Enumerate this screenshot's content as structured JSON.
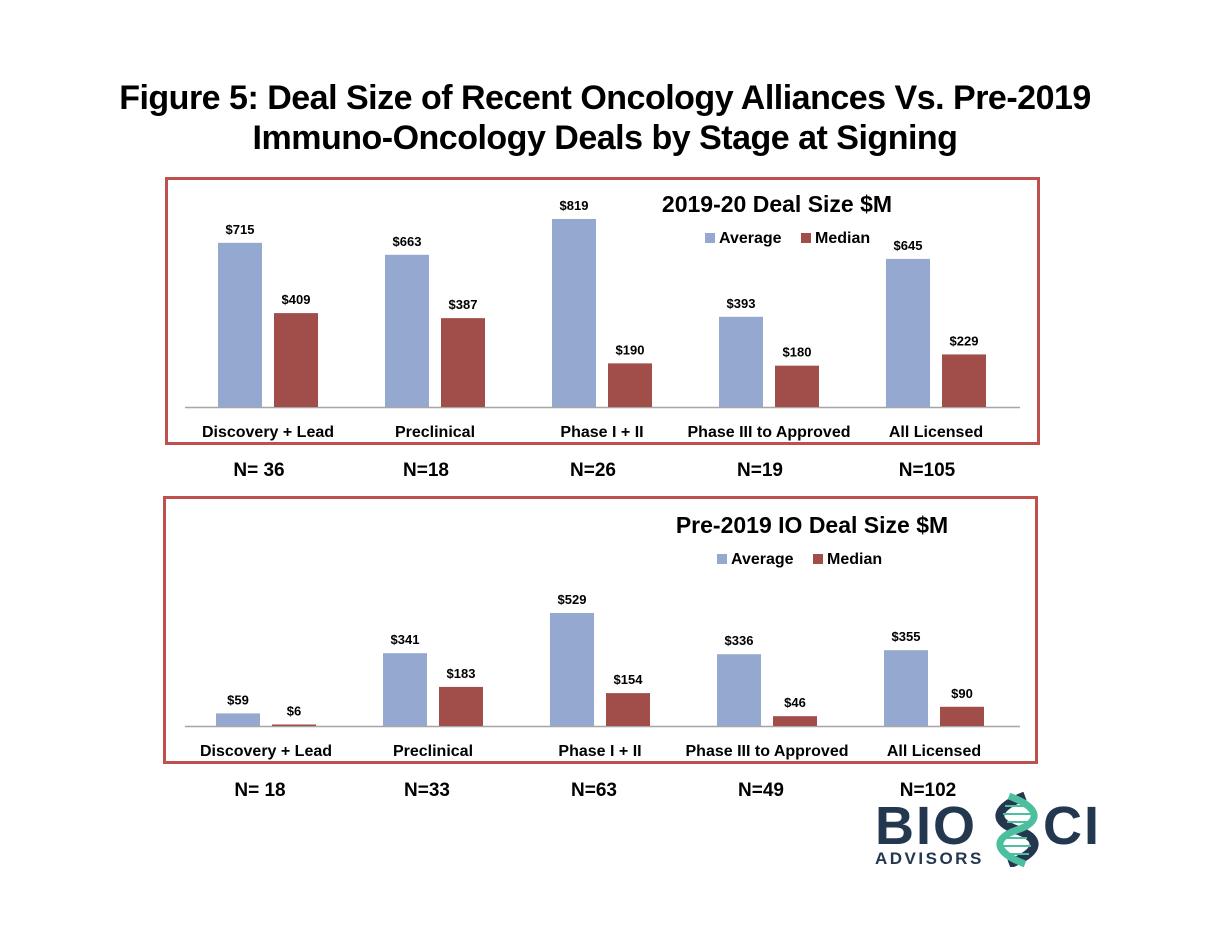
{
  "title": {
    "line1": "Figure 5:  Deal Size of Recent Oncology Alliances Vs. Pre-2019",
    "line2": "Immuno-Oncology Deals by Stage at Signing"
  },
  "colors": {
    "average": "#95a9d0",
    "median": "#a14d4a",
    "border": "#c0504d",
    "axis": "#a6a6a6",
    "logo_dark": "#23384f",
    "logo_teal": "#4cbf9f"
  },
  "chart_data": [
    {
      "type": "bar",
      "title": "2019-20 Deal Size $M",
      "categories": [
        "Discovery + Lead",
        "Preclinical",
        "Phase I + II",
        "Phase III to Approved",
        "All Licensed"
      ],
      "series": [
        {
          "name": "Average",
          "values": [
            715,
            663,
            819,
            393,
            645
          ],
          "labels": [
            "$715",
            "$663",
            "$819",
            "$393",
            "$645"
          ]
        },
        {
          "name": "Median",
          "values": [
            409,
            387,
            190,
            180,
            229
          ],
          "labels": [
            "$409",
            "$387",
            "$190",
            "$180",
            "$229"
          ]
        }
      ],
      "n_labels": [
        "N= 36",
        "N=18",
        "N=26",
        "N=19",
        "N=105"
      ],
      "legend": "top-right",
      "grid": false,
      "ylim": [
        0,
        819
      ]
    },
    {
      "type": "bar",
      "title": "Pre-2019 IO Deal Size $M",
      "categories": [
        "Discovery + Lead",
        "Preclinical",
        "Phase I + II",
        "Phase III to Approved",
        "All Licensed"
      ],
      "series": [
        {
          "name": "Average",
          "values": [
            59,
            341,
            529,
            336,
            355
          ],
          "labels": [
            "$59",
            "$341",
            "$529",
            "$336",
            "$355"
          ]
        },
        {
          "name": "Median",
          "values": [
            6,
            183,
            154,
            46,
            90
          ],
          "labels": [
            "$6",
            "$183",
            "$154",
            "$46",
            "$90"
          ]
        }
      ],
      "n_labels": [
        "N= 18",
        "N=33",
        "N=63",
        "N=49",
        "N=102"
      ],
      "legend": "top-right",
      "grid": false,
      "ylim": [
        0,
        529
      ]
    }
  ],
  "logo": {
    "text_main_left": "BIO",
    "text_main_right": "CI",
    "text_sub": "ADVISORS"
  }
}
